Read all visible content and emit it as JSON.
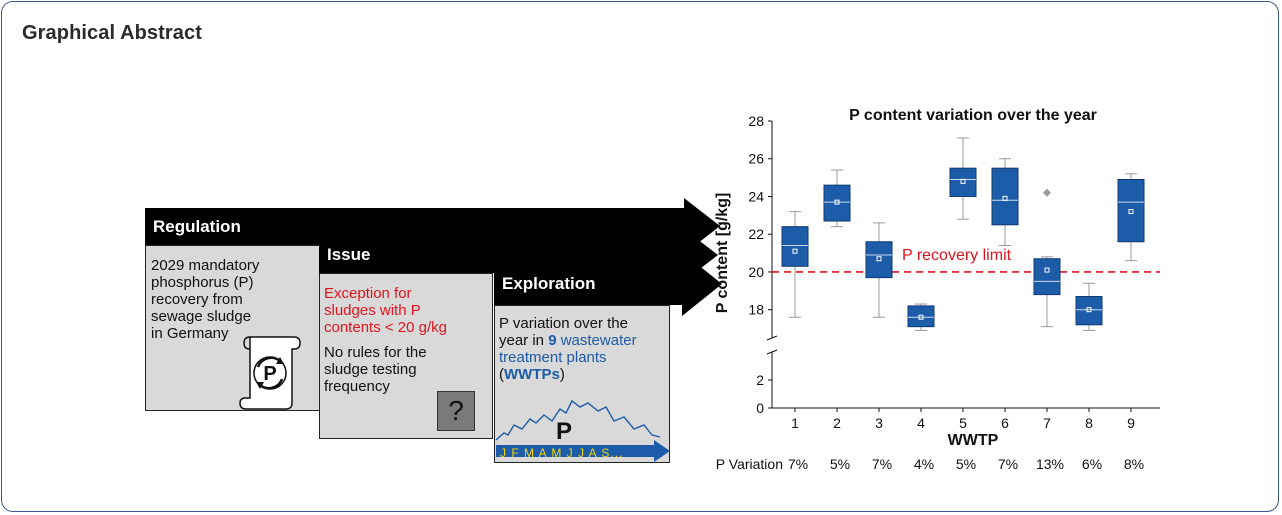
{
  "page": {
    "title": "Graphical Abstract"
  },
  "panels": {
    "regulation": {
      "header": "Regulation",
      "lines": [
        "2029 mandatory",
        "phosphorus (P)",
        "recovery from",
        "sewage sludge",
        "in Germany"
      ]
    },
    "issue": {
      "header": "Issue",
      "red_lines": [
        "Exception for",
        "sludges with P",
        "contents < 20 g/kg"
      ],
      "lines": [
        "No rules for the",
        "sludge testing",
        "frequency"
      ],
      "icon_glyph": "?"
    },
    "exploration": {
      "header": "Exploration",
      "line1": "P variation over the",
      "line2_pre": "year in ",
      "line2_bold": "9",
      "line2_post": " wastewater",
      "line3": "treatment plants",
      "line4_open": "(",
      "line4_bold": "WWTPs",
      "line4_close": ")",
      "curve_letter": "P",
      "months": "J F M A M J J A S..."
    },
    "scroll_icon_letter": "P"
  },
  "colors": {
    "box_fill": "#1d5ca8",
    "limit_line": "#e0141e",
    "panel_bg": "#d9d9d9",
    "accent_blue": "#1d5ca8"
  },
  "chart_data": {
    "type": "box",
    "title": "P content variation over the year",
    "xlabel": "WWTP",
    "ylabel": "P content [g/kg]",
    "categories": [
      "1",
      "2",
      "3",
      "4",
      "5",
      "6",
      "7",
      "8",
      "9"
    ],
    "yticks_upper": [
      "28",
      "26",
      "24",
      "22",
      "20",
      "18"
    ],
    "yticks_lower": [
      "2",
      "0"
    ],
    "ylim_upper": [
      16.5,
      28
    ],
    "ylim_lower": [
      0,
      4
    ],
    "axis_break": true,
    "limit": {
      "value": 20,
      "label": "P recovery limit"
    },
    "boxes": [
      {
        "min": 17.6,
        "q1": 20.3,
        "median": 21.4,
        "q3": 22.4,
        "max": 23.2,
        "mean": 21.1
      },
      {
        "min": 22.4,
        "q1": 22.7,
        "median": 23.7,
        "q3": 24.6,
        "max": 25.4,
        "mean": 23.7
      },
      {
        "min": 17.6,
        "q1": 19.7,
        "median": 20.9,
        "q3": 21.6,
        "max": 22.6,
        "mean": 20.7
      },
      {
        "min": 16.9,
        "q1": 17.1,
        "median": 17.6,
        "q3": 18.2,
        "max": 18.3,
        "mean": 17.6
      },
      {
        "min": 22.8,
        "q1": 24.0,
        "median": 24.9,
        "q3": 25.5,
        "max": 27.1,
        "mean": 24.8
      },
      {
        "min": 21.4,
        "q1": 22.5,
        "median": 23.8,
        "q3": 25.5,
        "max": 26.0,
        "mean": 23.9
      },
      {
        "min": 17.1,
        "q1": 18.8,
        "median": 19.5,
        "q3": 20.7,
        "max": 20.8,
        "mean": 20.1,
        "outlier": 24.2
      },
      {
        "min": 16.9,
        "q1": 17.2,
        "median": 18.0,
        "q3": 18.7,
        "max": 19.4,
        "mean": 18.0
      },
      {
        "min": 20.6,
        "q1": 21.6,
        "median": 23.7,
        "q3": 24.9,
        "max": 25.2,
        "mean": 23.2
      }
    ],
    "variation": {
      "label": "P Variation",
      "values": [
        "7%",
        "5%",
        "7%",
        "4%",
        "5%",
        "7%",
        "13%",
        "6%",
        "8%"
      ]
    },
    "grid": false,
    "legend": "none"
  }
}
